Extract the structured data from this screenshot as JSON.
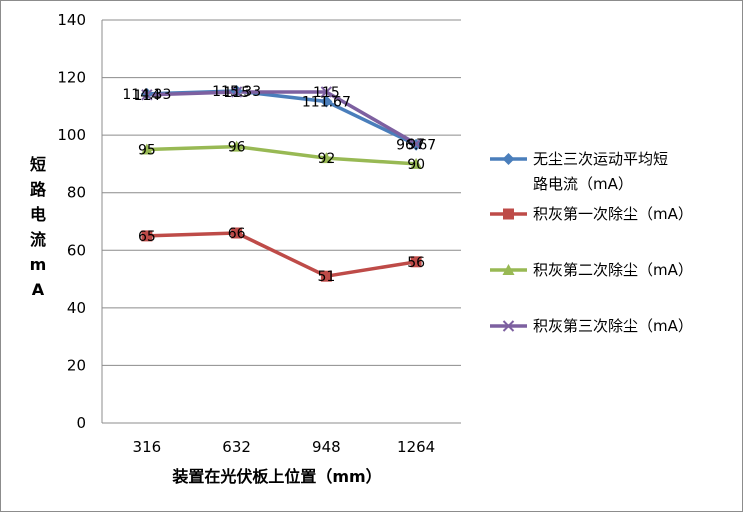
{
  "chart_data": {
    "type": "line",
    "categories": [
      "316",
      "632",
      "948",
      "1264"
    ],
    "xlabel": "装置在光伏板上位置（mm）",
    "ylabel": "短路电流mA",
    "ylim": [
      0,
      140
    ],
    "yticks": [
      0,
      20,
      40,
      60,
      80,
      100,
      120,
      140
    ],
    "grid": true,
    "legend_position": "right",
    "series": [
      {
        "name": "无尘三次运动平均短路电流（mA）",
        "values": [
          114.33,
          115.33,
          111.67,
          96.67
        ],
        "labels": [
          "114.33",
          "115.33",
          "111.67",
          "96.67"
        ],
        "color": "#4a7ebb",
        "marker": "diamond"
      },
      {
        "name": "积灰第一次除尘（mA）",
        "values": [
          65,
          66,
          51,
          56
        ],
        "labels": [
          "65",
          "66",
          "51",
          "56"
        ],
        "color": "#be4b48",
        "marker": "square"
      },
      {
        "name": "积灰第二次除尘（mA）",
        "values": [
          95,
          96,
          92,
          90
        ],
        "labels": [
          "95",
          "96",
          "92",
          "90"
        ],
        "color": "#98b954",
        "marker": "triangle"
      },
      {
        "name": "积灰第三次除尘（mA）",
        "values": [
          114,
          115,
          115,
          97
        ],
        "labels": [
          "114",
          "115",
          "115",
          "97"
        ],
        "color": "#7d60a0",
        "marker": "x"
      }
    ]
  }
}
